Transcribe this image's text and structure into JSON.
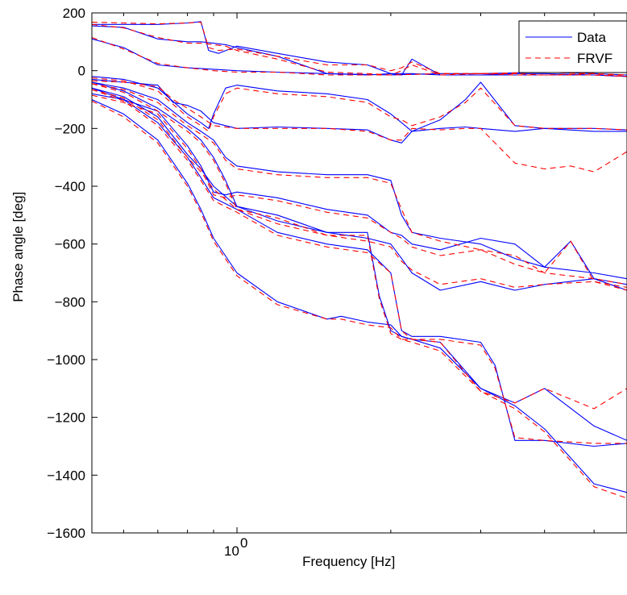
{
  "chart_data": {
    "type": "line",
    "xlabel": "Frequency [Hz]",
    "ylabel": "Phase angle [deg]",
    "xscale": "log",
    "xlim": [
      0.52,
      5.8
    ],
    "ylim": [
      -1600,
      200
    ],
    "yticks": [
      200,
      0,
      -200,
      -400,
      -600,
      -800,
      -1000,
      -1200,
      -1400,
      -1600
    ],
    "xticks": [
      {
        "value": 1,
        "base": "10",
        "exp": "0"
      }
    ],
    "grid": false,
    "legend": {
      "placement": "top-right",
      "entries": [
        "Data",
        "FRVF"
      ]
    },
    "colors": {
      "Data": "#0000ff",
      "FRVF": "#ff0000"
    },
    "series": [
      {
        "legend": "Data",
        "style": "solid",
        "curves": [
          {
            "x": [
              0.52,
              0.6,
              0.7,
              0.8,
              0.85,
              0.88,
              0.92,
              1.0,
              1.2,
              1.5,
              1.8,
              2.0,
              2.1,
              2.2,
              2.5,
              3.0,
              3.5,
              4.0,
              5.0,
              5.8
            ],
            "y": [
              160,
              160,
              160,
              165,
              170,
              70,
              60,
              85,
              60,
              30,
              20,
              -10,
              -15,
              40,
              -15,
              -15,
              -10,
              -10,
              -15,
              -20
            ]
          },
          {
            "x": [
              0.52,
              0.6,
              0.7,
              0.8,
              0.85,
              0.9,
              0.95,
              1.0,
              1.2,
              1.5,
              1.8,
              2.0,
              2.1,
              2.2,
              2.5,
              3.0,
              3.5,
              4.0,
              5.0,
              5.8
            ],
            "y": [
              155,
              150,
              110,
              100,
              100,
              95,
              90,
              80,
              50,
              -10,
              -15,
              -10,
              -10,
              -10,
              -15,
              -15,
              -15,
              -15,
              -15,
              -20
            ]
          },
          {
            "x": [
              0.52,
              0.6,
              0.7,
              0.8,
              0.9,
              1.0,
              1.2,
              1.5,
              2.0,
              2.5,
              3.0,
              4.0,
              5.0,
              5.8
            ],
            "y": [
              110,
              80,
              20,
              10,
              5,
              0,
              -5,
              -10,
              -15,
              -10,
              -10,
              -5,
              -10,
              -15
            ]
          },
          {
            "x": [
              0.52,
              0.6,
              0.7,
              0.75,
              0.8,
              0.85,
              0.9,
              1.0,
              1.2,
              1.5,
              1.8,
              2.0,
              2.1,
              2.2,
              2.5,
              2.8,
              3.0,
              3.5,
              4.0,
              5.0,
              5.8
            ],
            "y": [
              -30,
              -40,
              -50,
              -110,
              -120,
              -140,
              -180,
              -200,
              -195,
              -200,
              -205,
              -240,
              -250,
              -210,
              -200,
              -195,
              -200,
              -210,
              -200,
              -210,
              -210
            ]
          },
          {
            "x": [
              0.52,
              0.6,
              0.7,
              0.8,
              0.85,
              0.88,
              0.9,
              0.95,
              1.0,
              1.2,
              1.5,
              1.8,
              2.0,
              2.1,
              2.2,
              2.5,
              2.8,
              3.0,
              3.5,
              4.0,
              5.0,
              5.8
            ],
            "y": [
              -20,
              -30,
              -60,
              -150,
              -180,
              -200,
              -150,
              -60,
              -50,
              -70,
              -80,
              -100,
              -150,
              -180,
              -210,
              -170,
              -100,
              -40,
              -190,
              -200,
              -200,
              -205
            ]
          },
          {
            "x": [
              0.52,
              0.6,
              0.7,
              0.8,
              0.85,
              0.9,
              0.95,
              1.0,
              1.2,
              1.5,
              1.8,
              2.0,
              2.1,
              2.2,
              2.5,
              3.0,
              3.5,
              4.0,
              5.0,
              5.8
            ],
            "y": [
              -80,
              -100,
              -140,
              -260,
              -330,
              -420,
              -430,
              -420,
              -440,
              -480,
              -500,
              -560,
              -570,
              -600,
              -620,
              -580,
              -600,
              -680,
              -700,
              -720
            ]
          },
          {
            "x": [
              0.52,
              0.6,
              0.7,
              0.8,
              0.85,
              0.9,
              0.95,
              1.0,
              1.2,
              1.5,
              1.8,
              2.0,
              2.1,
              2.2,
              2.5,
              3.0,
              3.5,
              4.0,
              4.5,
              5.0,
              5.8
            ],
            "y": [
              -40,
              -60,
              -100,
              -180,
              -210,
              -240,
              -300,
              -330,
              -350,
              -360,
              -360,
              -380,
              -500,
              -560,
              -580,
              -600,
              -650,
              -680,
              -590,
              -720,
              -740
            ]
          },
          {
            "x": [
              0.52,
              0.6,
              0.7,
              0.8,
              0.85,
              0.9,
              0.95,
              1.0,
              1.2,
              1.5,
              1.8,
              2.0,
              2.1,
              2.2,
              2.5,
              3.0,
              3.5,
              4.0,
              5.0,
              5.8
            ],
            "y": [
              -40,
              -70,
              -130,
              -200,
              -240,
              -300,
              -380,
              -470,
              -520,
              -560,
              -580,
              -600,
              -650,
              -700,
              -760,
              -730,
              -760,
              -740,
              -720,
              -760
            ]
          },
          {
            "x": [
              0.52,
              0.6,
              0.7,
              0.8,
              0.85,
              0.9,
              1.0,
              1.2,
              1.5,
              1.6,
              1.8,
              2.0,
              2.1,
              2.2,
              2.5,
              3.0,
              3.5,
              4.0,
              5.0,
              5.8
            ],
            "y": [
              -100,
              -150,
              -240,
              -390,
              -480,
              -580,
              -700,
              -800,
              -860,
              -850,
              -870,
              -880,
              -920,
              -930,
              -940,
              -1100,
              -1150,
              -1100,
              -1230,
              -1280
            ]
          },
          {
            "x": [
              0.52,
              0.6,
              0.7,
              0.8,
              0.85,
              0.9,
              1.0,
              1.2,
              1.5,
              1.8,
              2.0,
              2.1,
              2.2,
              2.5,
              3.0,
              3.2,
              3.5,
              4.0,
              5.0,
              5.8
            ],
            "y": [
              -60,
              -100,
              -180,
              -300,
              -370,
              -440,
              -480,
              -560,
              -600,
              -620,
              -700,
              -900,
              -920,
              -920,
              -940,
              -1020,
              -1280,
              -1280,
              -1300,
              -1290
            ]
          },
          {
            "x": [
              0.52,
              0.6,
              0.7,
              0.8,
              0.85,
              0.9,
              1.0,
              1.2,
              1.5,
              1.8,
              1.9,
              2.0,
              2.1,
              2.2,
              2.5,
              3.0,
              3.5,
              4.0,
              5.0,
              5.8
            ],
            "y": [
              -60,
              -90,
              -160,
              -290,
              -340,
              -400,
              -470,
              -500,
              -560,
              -560,
              -780,
              -900,
              -920,
              -930,
              -960,
              -1100,
              -1160,
              -1240,
              -1430,
              -1460
            ]
          }
        ]
      },
      {
        "legend": "FRVF",
        "style": "dashed",
        "curves": [
          {
            "x": [
              0.52,
              0.6,
              0.7,
              0.8,
              0.85,
              0.88,
              0.92,
              1.0,
              1.2,
              1.5,
              1.8,
              2.0,
              2.1,
              2.2,
              2.5,
              3.0,
              3.5,
              4.0,
              5.0,
              5.8
            ],
            "y": [
              168,
              165,
              162,
              165,
              168,
              80,
              70,
              75,
              50,
              20,
              20,
              0,
              10,
              30,
              -10,
              -10,
              -10,
              -15,
              -10,
              -20
            ]
          },
          {
            "x": [
              0.52,
              0.6,
              0.7,
              0.8,
              0.85,
              0.9,
              0.95,
              1.0,
              1.2,
              1.5,
              1.8,
              2.0,
              2.1,
              2.2,
              2.5,
              3.0,
              3.5,
              4.0,
              5.0,
              5.8
            ],
            "y": [
              160,
              148,
              115,
              95,
              95,
              90,
              85,
              70,
              40,
              -5,
              -10,
              -15,
              0,
              20,
              -15,
              -10,
              -15,
              -15,
              -15,
              -20
            ]
          },
          {
            "x": [
              0.52,
              0.6,
              0.7,
              0.8,
              0.9,
              1.0,
              1.2,
              1.5,
              2.0,
              2.5,
              3.0,
              4.0,
              5.0,
              5.8
            ],
            "y": [
              115,
              75,
              25,
              10,
              0,
              -5,
              -5,
              -15,
              -15,
              -10,
              -10,
              -5,
              -10,
              -15
            ]
          },
          {
            "x": [
              0.52,
              0.6,
              0.7,
              0.75,
              0.8,
              0.85,
              0.9,
              1.0,
              1.2,
              1.5,
              1.8,
              2.0,
              2.1,
              2.2,
              2.5,
              2.8,
              3.0,
              3.5,
              4.0,
              4.5,
              5.0,
              5.8
            ],
            "y": [
              -35,
              -40,
              -55,
              -100,
              -130,
              -160,
              -190,
              -200,
              -200,
              -200,
              -210,
              -240,
              -240,
              -200,
              -205,
              -200,
              -200,
              -320,
              -340,
              -330,
              -350,
              -280
            ]
          },
          {
            "x": [
              0.52,
              0.6,
              0.7,
              0.8,
              0.85,
              0.88,
              0.9,
              0.95,
              1.0,
              1.2,
              1.5,
              1.8,
              2.0,
              2.1,
              2.2,
              2.5,
              2.8,
              3.0,
              3.5,
              4.0,
              5.0,
              5.8
            ],
            "y": [
              -25,
              -35,
              -70,
              -160,
              -190,
              -210,
              -160,
              -80,
              -60,
              -80,
              -90,
              -110,
              -160,
              -170,
              -190,
              -160,
              -110,
              -60,
              -190,
              -200,
              -200,
              -205
            ]
          },
          {
            "x": [
              0.52,
              0.6,
              0.7,
              0.8,
              0.85,
              0.9,
              0.95,
              1.0,
              1.2,
              1.5,
              1.8,
              2.0,
              2.1,
              2.2,
              2.5,
              3.0,
              3.5,
              4.0,
              5.0,
              5.8
            ],
            "y": [
              -85,
              -110,
              -150,
              -270,
              -340,
              -430,
              -440,
              -430,
              -450,
              -490,
              -510,
              -560,
              -580,
              -610,
              -640,
              -620,
              -640,
              -700,
              -720,
              -740
            ]
          },
          {
            "x": [
              0.52,
              0.6,
              0.7,
              0.8,
              0.85,
              0.9,
              0.95,
              1.0,
              1.2,
              1.5,
              1.8,
              2.0,
              2.1,
              2.2,
              2.5,
              3.0,
              3.5,
              4.0,
              4.5,
              5.0,
              5.8
            ],
            "y": [
              -45,
              -65,
              -110,
              -190,
              -220,
              -250,
              -310,
              -340,
              -360,
              -370,
              -370,
              -390,
              -480,
              -560,
              -590,
              -620,
              -670,
              -700,
              -590,
              -730,
              -750
            ]
          },
          {
            "x": [
              0.52,
              0.6,
              0.7,
              0.8,
              0.85,
              0.9,
              0.95,
              1.0,
              1.2,
              1.5,
              1.8,
              2.0,
              2.1,
              2.2,
              2.5,
              3.0,
              3.5,
              4.0,
              5.0,
              5.8
            ],
            "y": [
              -45,
              -75,
              -140,
              -210,
              -250,
              -310,
              -390,
              -480,
              -530,
              -570,
              -590,
              -610,
              -660,
              -690,
              -740,
              -720,
              -750,
              -740,
              -730,
              -760
            ]
          },
          {
            "x": [
              0.52,
              0.6,
              0.7,
              0.8,
              0.85,
              0.9,
              1.0,
              1.2,
              1.5,
              1.6,
              1.8,
              2.0,
              2.1,
              2.2,
              2.5,
              3.0,
              3.5,
              4.0,
              5.0,
              5.8
            ],
            "y": [
              -105,
              -160,
              -250,
              -400,
              -490,
              -590,
              -710,
              -810,
              -860,
              -860,
              -880,
              -890,
              -930,
              -930,
              -940,
              -1110,
              -1150,
              -1100,
              -1170,
              -1100
            ]
          },
          {
            "x": [
              0.52,
              0.6,
              0.7,
              0.8,
              0.85,
              0.9,
              1.0,
              1.2,
              1.5,
              1.8,
              2.0,
              2.1,
              2.2,
              2.5,
              3.0,
              3.2,
              3.5,
              4.0,
              5.0,
              5.8
            ],
            "y": [
              -65,
              -105,
              -190,
              -310,
              -380,
              -450,
              -490,
              -570,
              -610,
              -630,
              -700,
              -900,
              -930,
              -930,
              -950,
              -1030,
              -1270,
              -1280,
              -1290,
              -1290
            ]
          },
          {
            "x": [
              0.52,
              0.6,
              0.7,
              0.8,
              0.85,
              0.9,
              1.0,
              1.2,
              1.5,
              1.8,
              1.9,
              2.0,
              2.1,
              2.2,
              2.5,
              3.0,
              3.5,
              4.0,
              5.0,
              5.8
            ],
            "y": [
              -65,
              -95,
              -170,
              -300,
              -350,
              -410,
              -480,
              -510,
              -570,
              -570,
              -790,
              -910,
              -930,
              -940,
              -970,
              -1110,
              -1170,
              -1250,
              -1440,
              -1480
            ]
          }
        ]
      }
    ]
  }
}
